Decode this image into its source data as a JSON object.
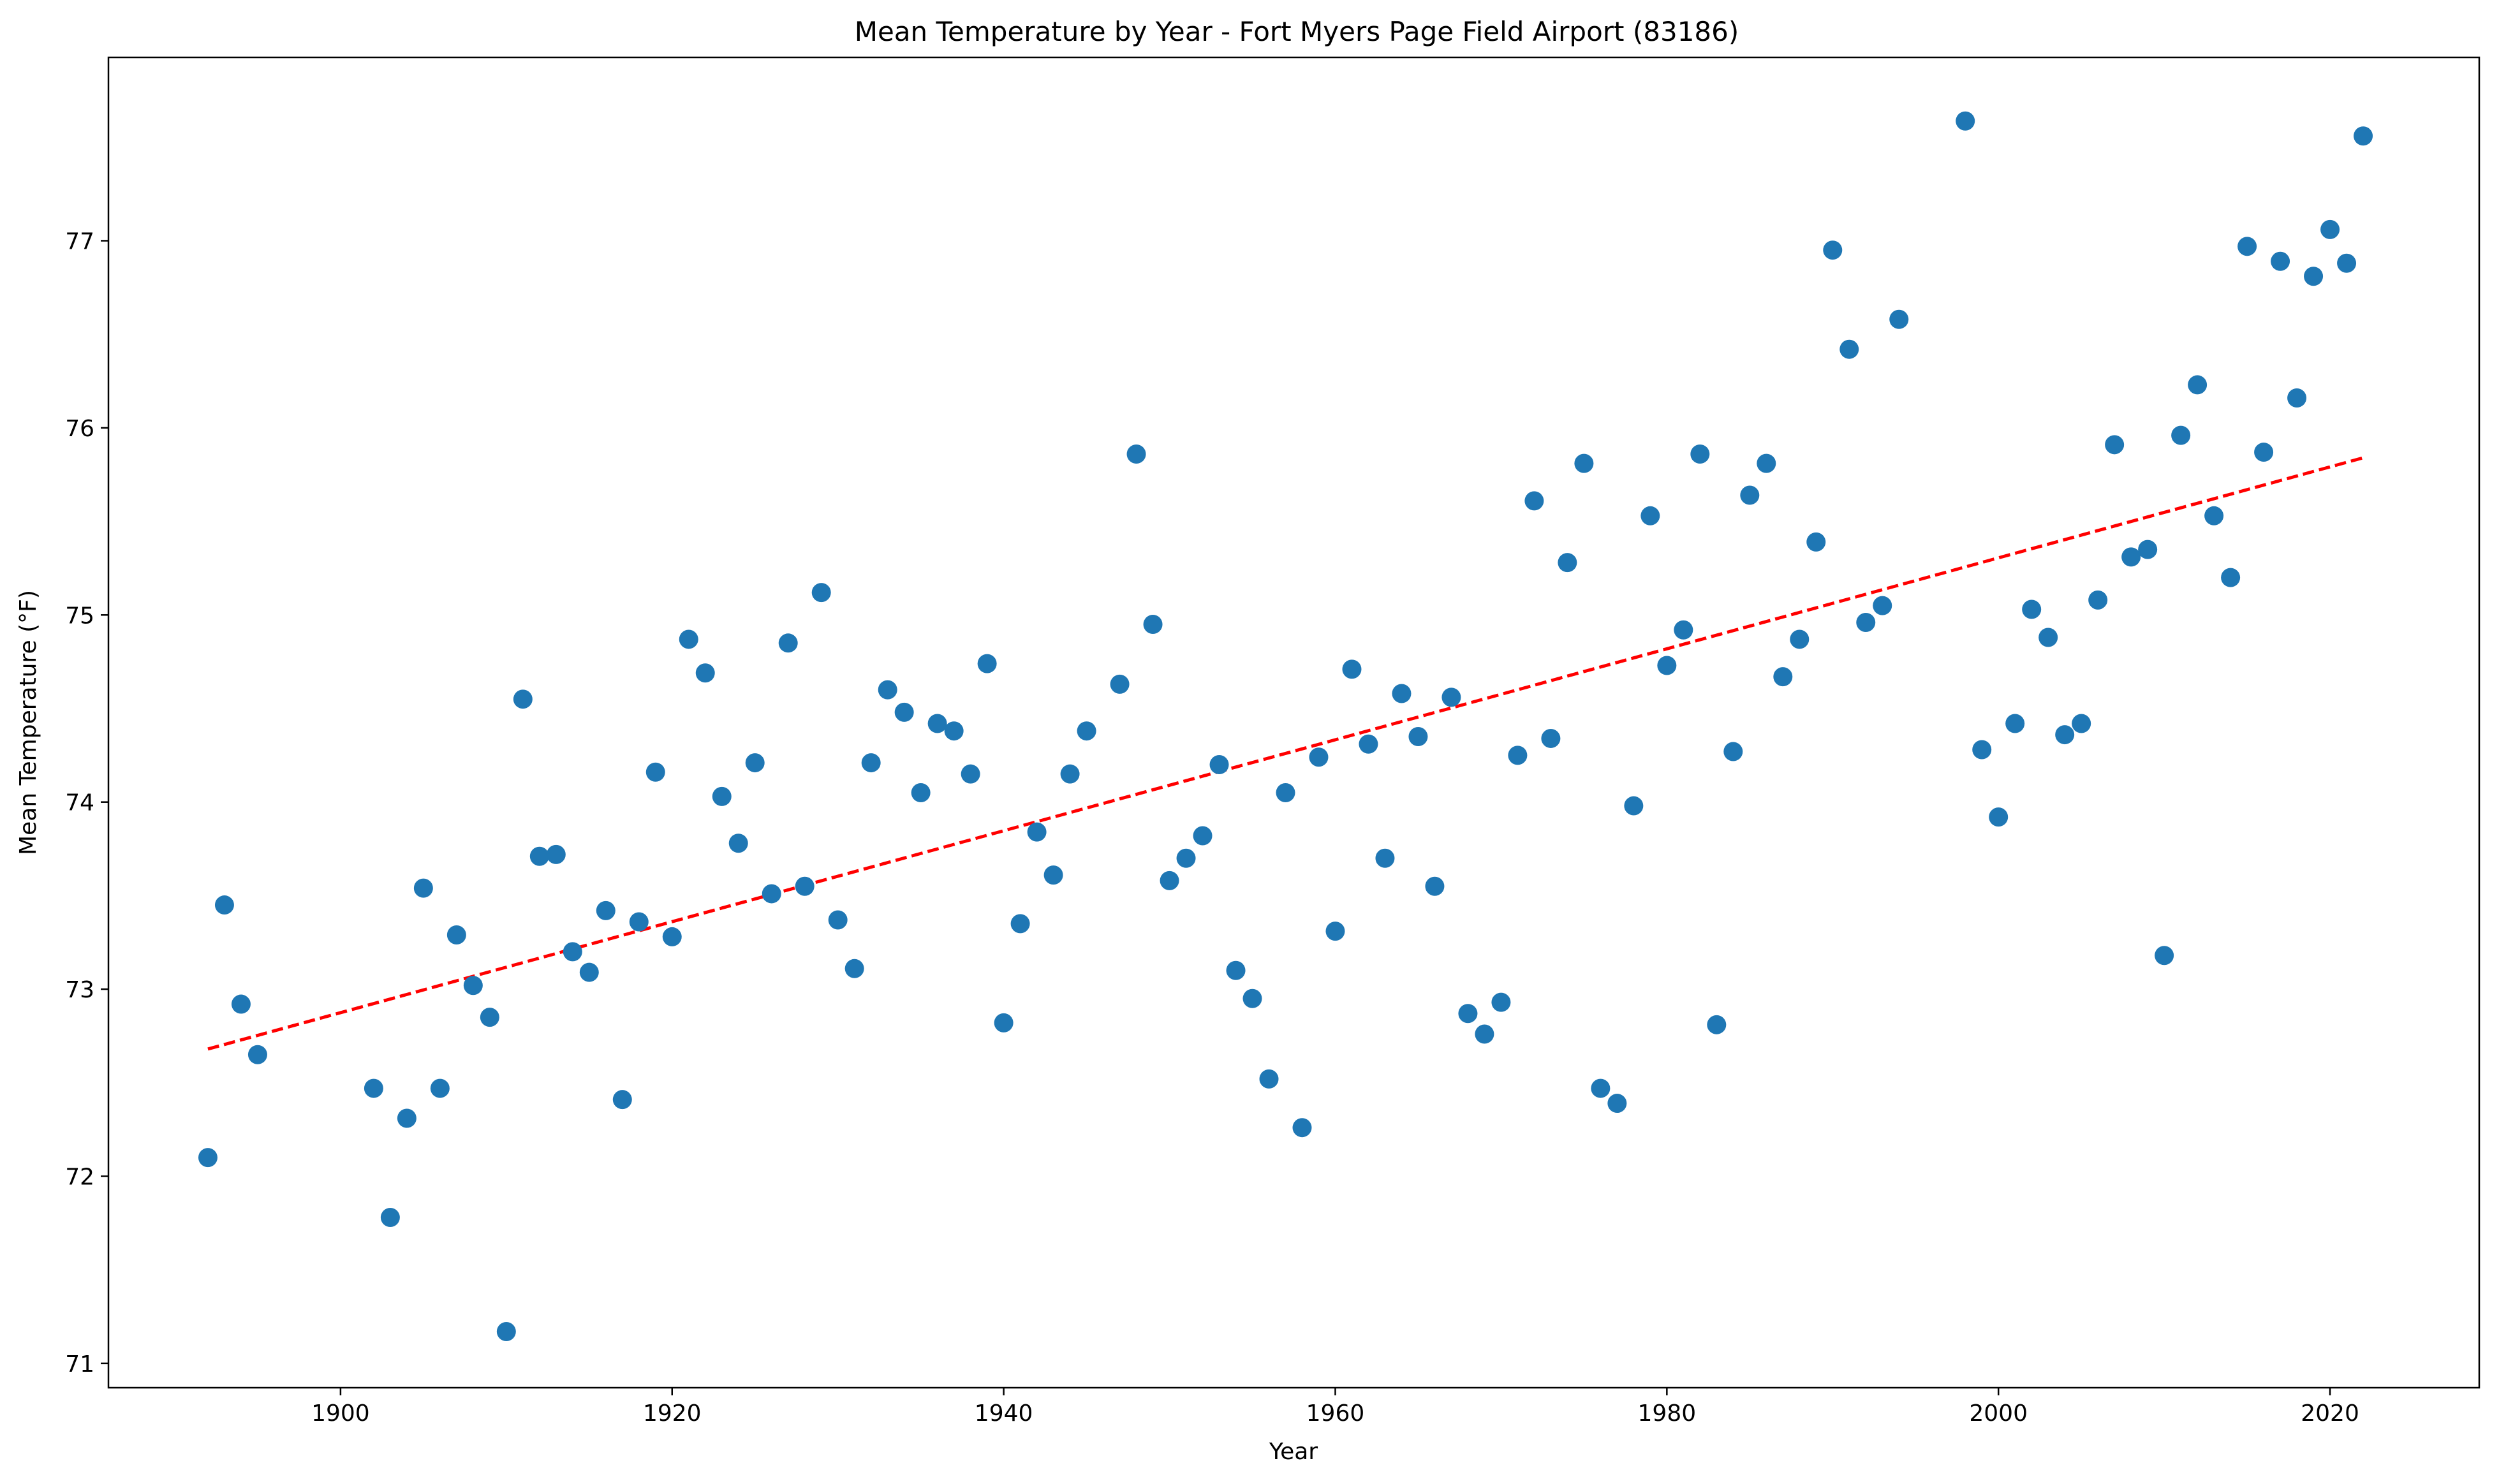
{
  "chart_data": {
    "type": "scatter",
    "title": "Mean Temperature by Year - Fort Myers Page Field Airport (83186)",
    "xlabel": "Year",
    "ylabel": "Mean Temperature (°F)",
    "xlim": [
      1886,
      2029
    ],
    "ylim": [
      70.87,
      77.98
    ],
    "xticks": [
      1900,
      1920,
      1940,
      1960,
      1980,
      2000,
      2020
    ],
    "yticks": [
      71,
      72,
      73,
      74,
      75,
      76,
      77
    ],
    "grid": false,
    "legend": "none",
    "colors": {
      "points": "#1f77b4",
      "trend": "#ff0000"
    },
    "series": [
      {
        "x": [
          1892,
          1893,
          1894,
          1895,
          1902,
          1903,
          1904,
          1905,
          1906,
          1907,
          1908,
          1909,
          1910,
          1911,
          1912,
          1913,
          1914,
          1915,
          1916,
          1917,
          1918,
          1919,
          1920,
          1921,
          1922,
          1923,
          1924,
          1925,
          1926,
          1927,
          1928,
          1929,
          1930,
          1931,
          1932,
          1933,
          1934,
          1935,
          1936,
          1937,
          1938,
          1939,
          1940,
          1941,
          1942,
          1943,
          1944,
          1945,
          1947,
          1948,
          1949,
          1950,
          1951,
          1952,
          1953,
          1954,
          1955,
          1956,
          1957,
          1958,
          1959,
          1960,
          1961,
          1962,
          1963,
          1964,
          1965,
          1966,
          1967,
          1968,
          1969,
          1970,
          1971,
          1972,
          1973,
          1974,
          1975,
          1976,
          1977,
          1978,
          1979,
          1980,
          1981,
          1982,
          1983,
          1984,
          1985,
          1986,
          1987,
          1988,
          1989,
          1990,
          1991,
          1992,
          1993,
          1994,
          1998,
          1999,
          2000,
          2001,
          2002,
          2003,
          2004,
          2005,
          2006,
          2007,
          2008,
          2009,
          2010,
          2011,
          2012,
          2013,
          2014,
          2015,
          2016,
          2017,
          2018,
          2019,
          2020,
          2021,
          2022
        ],
        "y": [
          72.1,
          73.45,
          72.92,
          72.65,
          72.47,
          71.78,
          72.31,
          73.54,
          72.47,
          73.29,
          73.02,
          72.85,
          71.17,
          74.55,
          73.71,
          73.72,
          73.2,
          73.09,
          73.42,
          72.41,
          73.36,
          74.16,
          73.28,
          74.87,
          74.69,
          74.03,
          73.78,
          74.21,
          73.51,
          74.85,
          73.55,
          75.12,
          73.37,
          73.11,
          74.21,
          74.6,
          74.48,
          74.05,
          74.42,
          74.38,
          74.15,
          74.74,
          72.82,
          73.35,
          73.84,
          73.61,
          74.15,
          74.38,
          74.63,
          75.86,
          74.95,
          73.58,
          73.7,
          73.82,
          74.2,
          73.1,
          72.95,
          72.52,
          74.05,
          72.26,
          74.24,
          73.31,
          74.71,
          74.31,
          73.7,
          74.58,
          74.35,
          73.55,
          74.56,
          72.87,
          72.76,
          72.93,
          74.25,
          75.61,
          74.34,
          75.28,
          75.81,
          72.47,
          72.39,
          73.98,
          75.53,
          74.73,
          74.92,
          75.86,
          72.81,
          74.27,
          75.64,
          75.81,
          74.67,
          74.87,
          75.39,
          76.95,
          76.42,
          74.96,
          75.05,
          76.58,
          77.64,
          74.28,
          73.92,
          74.42,
          75.03,
          74.88,
          74.36,
          74.42,
          75.08,
          75.91,
          75.31,
          75.35,
          73.18,
          75.96,
          76.23,
          75.53,
          75.2,
          76.97,
          75.87,
          76.89,
          76.16,
          76.81,
          77.06,
          76.88,
          77.56
        ]
      }
    ],
    "trendline": {
      "x": [
        1892,
        2022
      ],
      "y": [
        72.68,
        75.84
      ]
    }
  }
}
